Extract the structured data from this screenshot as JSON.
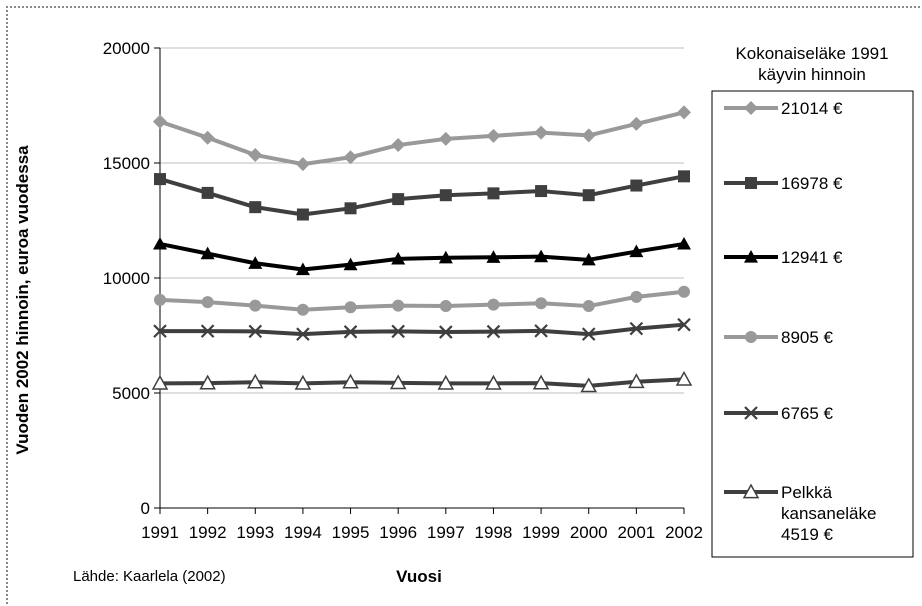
{
  "chart_data": {
    "type": "line",
    "title": "",
    "xlabel": "Vuosi",
    "ylabel": "Vuoden 2002 hinnoin, euroa  vuodessa",
    "ylim": [
      0,
      20000
    ],
    "yticks": [
      "0",
      "5000",
      "10000",
      "15000",
      "20000"
    ],
    "categories": [
      "1991",
      "1992",
      "1993",
      "1994",
      "1995",
      "1996",
      "1997",
      "1998",
      "1999",
      "2000",
      "2001",
      "2002"
    ],
    "grid": "horizontal",
    "legend_title": [
      "Kokonaiseläke 1991",
      "käyvin hinnoin"
    ],
    "legend_position": "right",
    "series": [
      {
        "name": [
          "21014 €"
        ],
        "color": "#999999",
        "marker": "diamond",
        "values": [
          16800,
          16100,
          15350,
          14950,
          15250,
          15780,
          16050,
          16180,
          16320,
          16200,
          16700,
          17200
        ]
      },
      {
        "name": [
          "16978 €"
        ],
        "color": "#3f3f3f",
        "marker": "square",
        "values": [
          14300,
          13700,
          13080,
          12760,
          13030,
          13430,
          13600,
          13680,
          13780,
          13600,
          14020,
          14420
        ]
      },
      {
        "name": [
          "12941 €"
        ],
        "color": "#000000",
        "marker": "triangle",
        "values": [
          11480,
          11060,
          10640,
          10370,
          10580,
          10830,
          10880,
          10900,
          10930,
          10790,
          11150,
          11480
        ]
      },
      {
        "name": [
          "8905 €"
        ],
        "color": "#999999",
        "marker": "circle",
        "values": [
          9050,
          8950,
          8800,
          8620,
          8730,
          8800,
          8780,
          8840,
          8900,
          8780,
          9180,
          9400
        ]
      },
      {
        "name": [
          "6765 €"
        ],
        "color": "#3f3f3f",
        "marker": "x",
        "values": [
          7690,
          7690,
          7680,
          7560,
          7660,
          7680,
          7650,
          7670,
          7700,
          7560,
          7800,
          7970
        ]
      },
      {
        "name": [
          "Pelkkä",
          "kansaneläke",
          "4519 €"
        ],
        "color": "#3f3f3f",
        "marker": "triangle-open",
        "values": [
          5420,
          5430,
          5470,
          5420,
          5470,
          5440,
          5420,
          5420,
          5430,
          5310,
          5490,
          5590
        ]
      }
    ]
  },
  "source": "Lähde: Kaarlela (2002)",
  "colors": {
    "grid": "#bfbfbf",
    "axis": "#000000",
    "legend_border": "#000000"
  }
}
